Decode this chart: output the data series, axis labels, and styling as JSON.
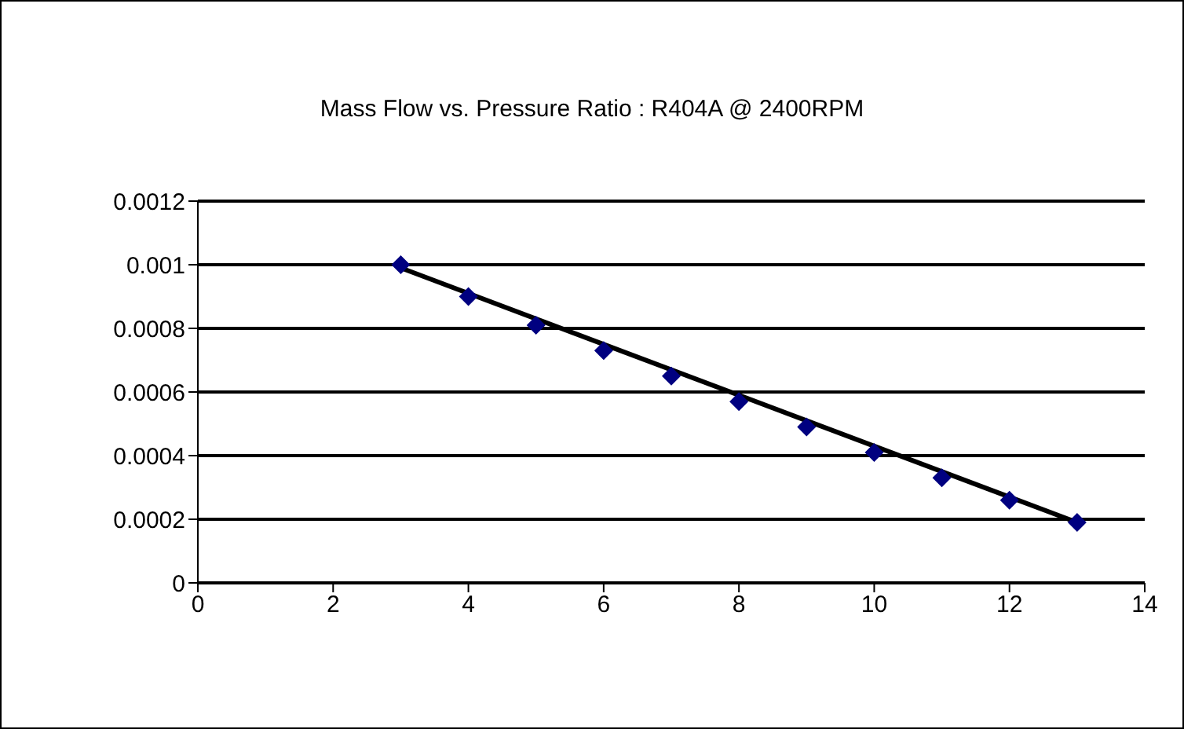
{
  "chart_data": {
    "type": "scatter",
    "title": "Mass Flow vs. Pressure Ratio : R404A @ 2400RPM",
    "xlim": [
      0,
      14
    ],
    "xticks": [
      0,
      2,
      4,
      6,
      8,
      10,
      12,
      14
    ],
    "ylim": [
      0,
      0.0012
    ],
    "yticks": [
      0,
      0.0002,
      0.0004,
      0.0006,
      0.0008,
      0.001,
      0.0012
    ],
    "grid": "y",
    "marker": "diamond",
    "legend": false,
    "series": [
      {
        "color": "#000080",
        "x": [
          3,
          4,
          5,
          6,
          7,
          8,
          9,
          10,
          11,
          12,
          13
        ],
        "values": [
          0.001,
          0.0009,
          0.00081,
          0.00073,
          0.00065,
          0.00057,
          0.00049,
          0.00041,
          0.00033,
          0.00026,
          0.00019
        ]
      },
      {
        "type": "line",
        "color": "#000000",
        "x": [
          3,
          13
        ],
        "values": [
          0.00099,
          0.00019
        ],
        "marker": "none",
        "line_style": "solid"
      }
    ]
  }
}
